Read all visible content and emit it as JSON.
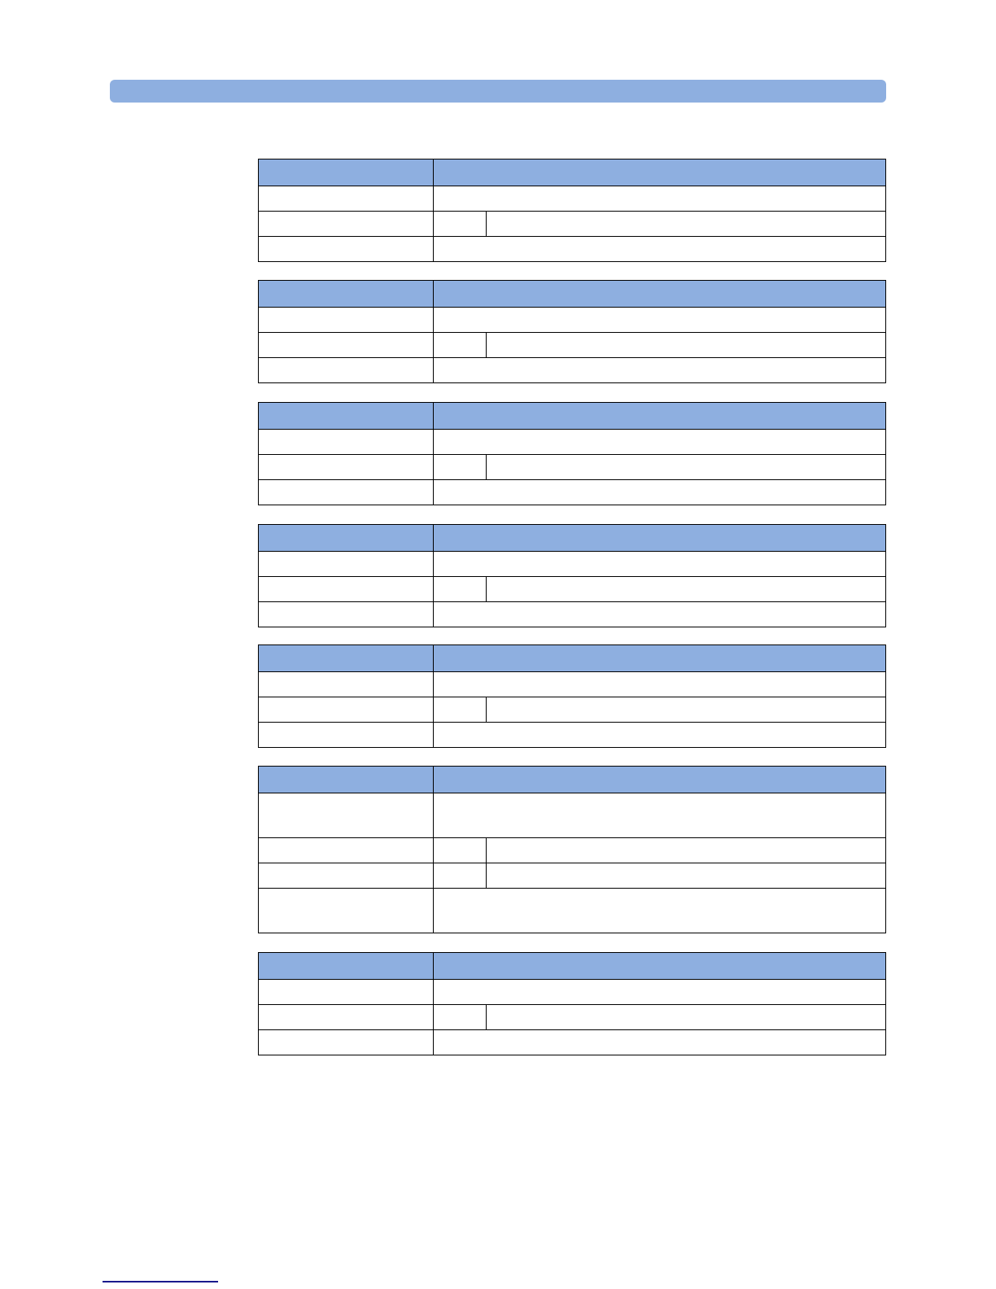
{
  "colors": {
    "header": "#8eafe0",
    "border": "#000000",
    "footer_rule": "#1a1a8c"
  },
  "tables": [
    {
      "rows": [
        "span",
        "split",
        "span"
      ]
    },
    {
      "rows": [
        "span",
        "split",
        "span"
      ]
    },
    {
      "rows": [
        "span",
        "split",
        "span"
      ]
    },
    {
      "rows": [
        "span",
        "split",
        "span"
      ]
    },
    {
      "rows": [
        "span",
        "split",
        "span"
      ]
    },
    {
      "rows": [
        "tall",
        "split",
        "split",
        "tall"
      ]
    },
    {
      "rows": [
        "span",
        "split",
        "span"
      ]
    }
  ]
}
